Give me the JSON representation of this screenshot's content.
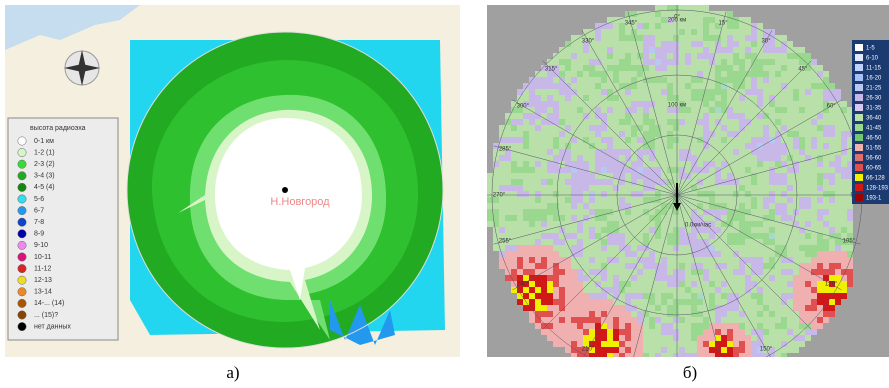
{
  "panel_a": {
    "caption": "а)",
    "city_label": "Н.Новгород",
    "legend": {
      "title": "высота радиоэха",
      "items": [
        {
          "label": "0-1 км",
          "color": "#ffffff"
        },
        {
          "label": "1-2 (1)",
          "color": "#d8f5c8"
        },
        {
          "label": "2-3 (2)",
          "color": "#33dd33"
        },
        {
          "label": "3-4 (3)",
          "color": "#22aa22"
        },
        {
          "label": "4-5 (4)",
          "color": "#118811"
        },
        {
          "label": "5-6",
          "color": "#33ddee"
        },
        {
          "label": "6-7",
          "color": "#2299ee"
        },
        {
          "label": "7-8",
          "color": "#1144cc"
        },
        {
          "label": "8-9",
          "color": "#0000aa"
        },
        {
          "label": "9-10",
          "color": "#ee88ee"
        },
        {
          "label": "10-11",
          "color": "#dd1177"
        },
        {
          "label": "11-12",
          "color": "#dd2222"
        },
        {
          "label": "12-13",
          "color": "#eedd22"
        },
        {
          "label": "13-14",
          "color": "#ee8822"
        },
        {
          "label": "14-... (14)",
          "color": "#aa5500"
        },
        {
          "label": "... (15)?",
          "color": "#884400"
        },
        {
          "label": "нет данных",
          "color": "#000000"
        }
      ]
    }
  },
  "panel_b": {
    "caption": "б)",
    "angle_labels": [
      {
        "value": 0,
        "label": "0°"
      },
      {
        "value": 15,
        "label": "15°"
      },
      {
        "value": 30,
        "label": "30°"
      },
      {
        "value": 45,
        "label": "45°"
      },
      {
        "value": 60,
        "label": "60°"
      },
      {
        "value": 90,
        "label": "90°"
      },
      {
        "value": 105,
        "label": "105°"
      },
      {
        "value": 120,
        "label": "120°"
      },
      {
        "value": 150,
        "label": "150°"
      },
      {
        "value": 210,
        "label": "210°"
      },
      {
        "value": 240,
        "label": "240°"
      },
      {
        "value": 255,
        "label": "255°"
      },
      {
        "value": 270,
        "label": "270°"
      },
      {
        "value": 285,
        "label": "285°"
      },
      {
        "value": 300,
        "label": "300°"
      },
      {
        "value": 315,
        "label": "315°"
      },
      {
        "value": 330,
        "label": "330°"
      },
      {
        "value": 345,
        "label": "345°"
      }
    ],
    "range_labels": [
      "100 км",
      "200 км"
    ],
    "center_label": "0.0км/час",
    "legend": [
      "1-5",
      "6-10",
      "11-15",
      "16-20",
      "21-25",
      "26-30",
      "31-35",
      "36-40",
      "41-45",
      "46-50",
      "51-55",
      "56-60",
      "60-65",
      "66-128",
      "128-193",
      "193-1"
    ]
  }
}
